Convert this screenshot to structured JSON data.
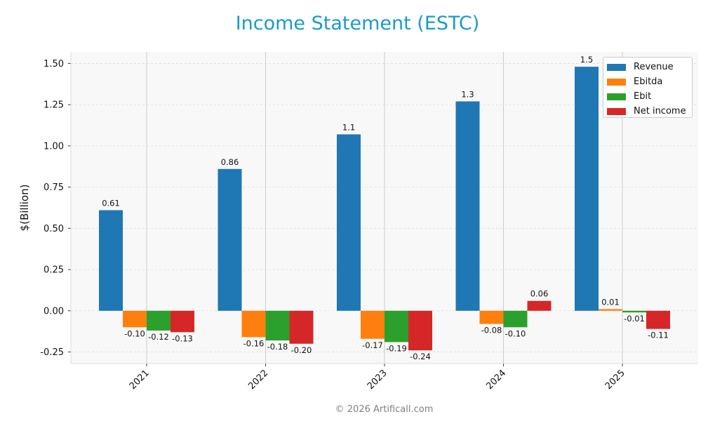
{
  "chart_data": {
    "type": "bar",
    "title": "Income Statement (ESTC)",
    "ylabel": "$(Billion)",
    "xlabel": "",
    "categories": [
      "2021",
      "2022",
      "2023",
      "2024",
      "2025"
    ],
    "ylim": [
      -0.32,
      1.57
    ],
    "yticks": [
      -0.25,
      0.0,
      0.25,
      0.5,
      0.75,
      1.0,
      1.25,
      1.5
    ],
    "ytick_labels": [
      "-0.25",
      "0.00",
      "0.25",
      "0.50",
      "0.75",
      "1.00",
      "1.25",
      "1.50"
    ],
    "grid": true,
    "legend_position": "top-right",
    "series": [
      {
        "name": "Revenue",
        "color": "#1f77b4",
        "values": [
          0.61,
          0.86,
          1.07,
          1.27,
          1.48
        ],
        "labels": [
          "0.61",
          "0.86",
          "1.1",
          "1.3",
          "1.5"
        ]
      },
      {
        "name": "Ebitda",
        "color": "#ff7f0e",
        "values": [
          -0.1,
          -0.16,
          -0.17,
          -0.08,
          0.01
        ],
        "labels": [
          "-0.10",
          "-0.16",
          "-0.17",
          "-0.08",
          "0.01"
        ]
      },
      {
        "name": "Ebit",
        "color": "#2ca02c",
        "values": [
          -0.12,
          -0.18,
          -0.19,
          -0.1,
          -0.01
        ],
        "labels": [
          "-0.12",
          "-0.18",
          "-0.19",
          "-0.10",
          "-0.01"
        ]
      },
      {
        "name": "Net income",
        "color": "#d62728",
        "values": [
          -0.13,
          -0.2,
          -0.24,
          0.06,
          -0.11
        ],
        "labels": [
          "-0.13",
          "-0.20",
          "-0.24",
          "0.06",
          "-0.11"
        ]
      }
    ]
  },
  "footer": {
    "copyright": "© 2026 Artificall.com"
  }
}
